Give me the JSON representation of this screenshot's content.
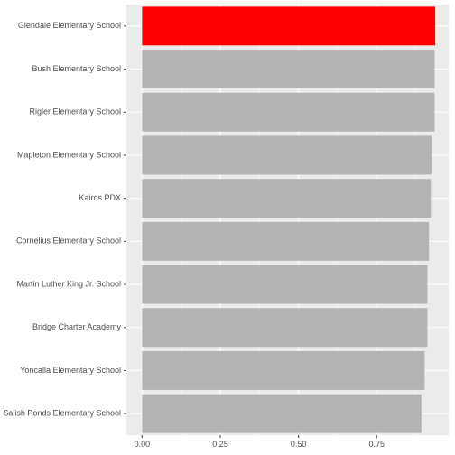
{
  "chart_data": {
    "type": "bar",
    "orientation": "horizontal",
    "title": "",
    "xlabel": "",
    "ylabel": "",
    "categories": [
      "Glendale Elementary School",
      "Bush Elementary School",
      "Rigler Elementary School",
      "Mapleton Elementary School",
      "Kairos PDX",
      "Cornelius Elementary School",
      "Martin Luther King Jr. School",
      "Bridge Charter Academy",
      "Yoncalla Elementary School",
      "Salish Ponds Elementary School"
    ],
    "values": [
      0.937,
      0.935,
      0.935,
      0.925,
      0.923,
      0.917,
      0.912,
      0.912,
      0.903,
      0.893
    ],
    "xlim": [
      -0.05,
      0.98
    ],
    "x_ticks": [
      0,
      0.25,
      0.5,
      0.75
    ],
    "x_tick_labels": [
      "0.00",
      "0.25",
      "0.50",
      "0.75"
    ],
    "highlight_index": 0,
    "colors": {
      "highlight": "#ff0000",
      "bar": "#b3b3b3",
      "panel": "#ebebeb",
      "grid": "#ffffff"
    },
    "grid": true,
    "legend": "none"
  }
}
